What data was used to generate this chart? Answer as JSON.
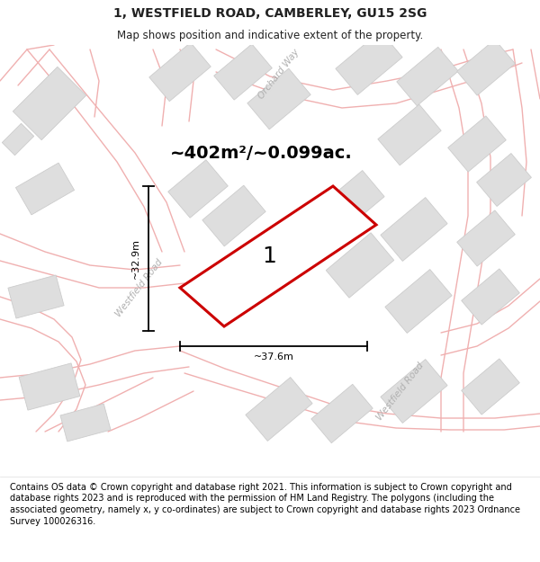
{
  "title": "1, WESTFIELD ROAD, CAMBERLEY, GU15 2SG",
  "subtitle": "Map shows position and indicative extent of the property.",
  "area_label": "~402m²/~0.099ac.",
  "plot_number": "1",
  "dim_width": "~37.6m",
  "dim_height": "~32.9m",
  "road_label_1": "Westfield Road",
  "road_label_2": "Westfield Road",
  "orchard_way": "Orchard Way",
  "footer": "Contains OS data © Crown copyright and database right 2021. This information is subject to Crown copyright and database rights 2023 and is reproduced with the permission of HM Land Registry. The polygons (including the associated geometry, namely x, y co-ordinates) are subject to Crown copyright and database rights 2023 Ordnance Survey 100026316.",
  "map_bg": "#ffffff",
  "plot_color": "#cc0000",
  "road_color": "#f0b0b0",
  "road_lw": 1.0,
  "block_color": "#dedede",
  "block_edge": "#cccccc",
  "text_color": "#222222",
  "road_text_color": "#b0b0b0",
  "title_fontsize": 10,
  "subtitle_fontsize": 8.5,
  "area_fontsize": 14,
  "plot_num_fontsize": 18,
  "dim_fontsize": 8,
  "footer_fontsize": 7.0
}
